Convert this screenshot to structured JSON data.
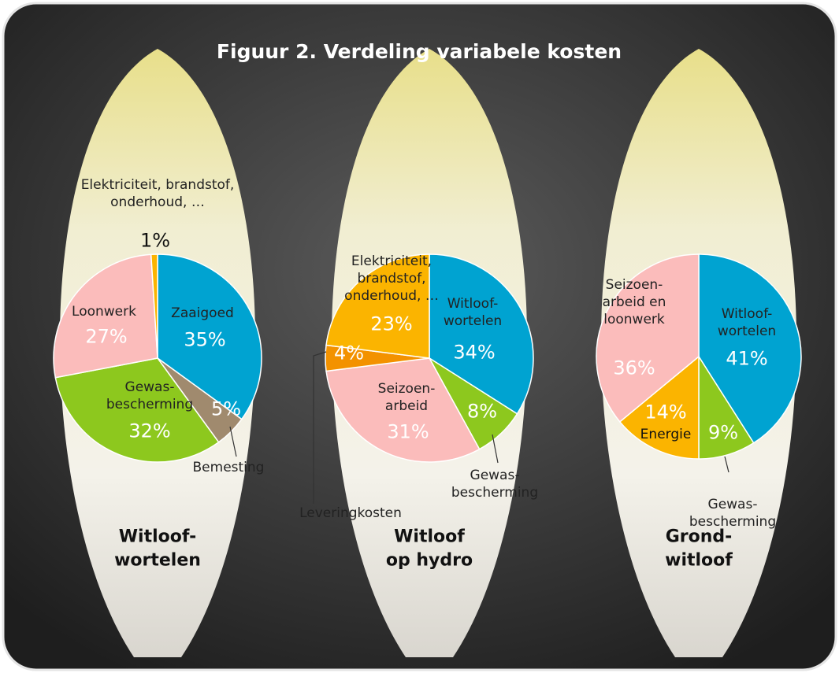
{
  "title": "Figuur 2. Verdeling variabele kosten",
  "chart_data": [
    {
      "type": "pie",
      "title": "Witloof-\nwortelen",
      "categories": [
        "Zaaigoed",
        "Bemesting",
        "Gewas-\nbescherming",
        "Loonwerk",
        "Elektriciteit, brandstof,\nonderhoud, …"
      ],
      "values": [
        35,
        5,
        32,
        27,
        1
      ],
      "value_labels": [
        "35%",
        "5%",
        "32%",
        "27%",
        "1%"
      ],
      "colors": [
        "#00a3d1",
        "#a08a6e",
        "#8dc81e",
        "#fbbcbb",
        "#fbb400"
      ]
    },
    {
      "type": "pie",
      "title": "Witloof\nop hydro",
      "categories": [
        "Witloof-\nwortelen",
        "Gewas-\nbescherming",
        "Seizoen-\narbeid",
        "Leveringkosten",
        "Elektriciteit,\nbrandstof,\nonderhoud, …"
      ],
      "values": [
        34,
        8,
        31,
        4,
        23
      ],
      "value_labels": [
        "34%",
        "8%",
        "31%",
        "4%",
        "23%"
      ],
      "colors": [
        "#00a3d1",
        "#8dc81e",
        "#fbbcbb",
        "#f39200",
        "#fbb400"
      ]
    },
    {
      "type": "pie",
      "title": "Grond-\nwitloof",
      "categories": [
        "Witloof-\nwortelen",
        "Gewas-\nbescherming",
        "Energie",
        "Seizoen-\narbeid en\nloonwerk"
      ],
      "values": [
        41,
        9,
        14,
        36
      ],
      "value_labels": [
        "41%",
        "9%",
        "14%",
        "36%"
      ],
      "colors": [
        "#00a3d1",
        "#8dc81e",
        "#fbb400",
        "#fbbcbb"
      ]
    }
  ]
}
